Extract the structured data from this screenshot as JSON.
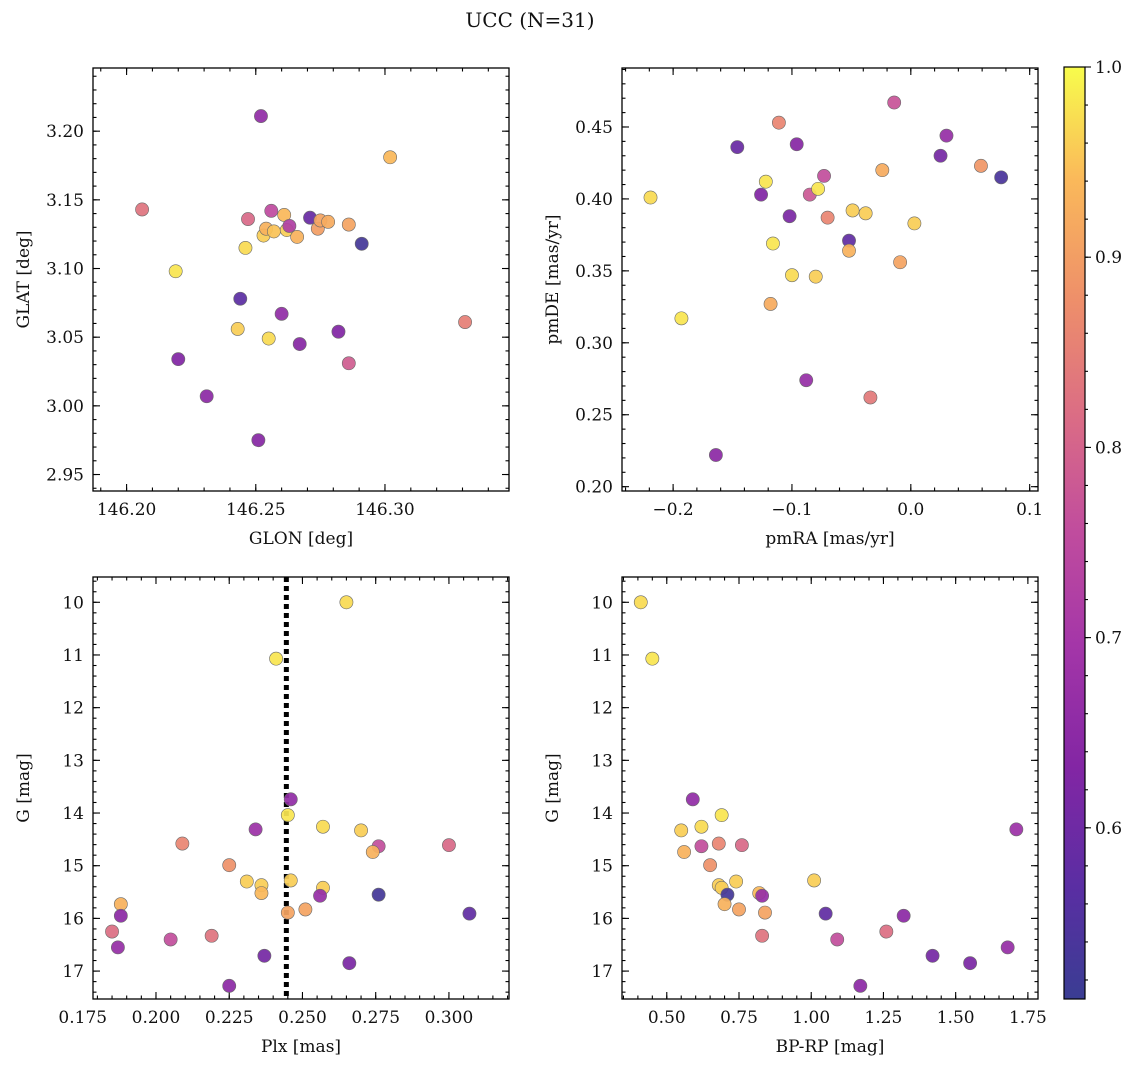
{
  "figure": {
    "title": "UCC (N=31)"
  },
  "colorbar": {
    "colormap": "plasma",
    "range": [
      0.51,
      1.0
    ],
    "ticks": [
      {
        "value": 0.6,
        "label": "0.6"
      },
      {
        "value": 0.7,
        "label": "0.7"
      },
      {
        "value": 0.8,
        "label": "0.8"
      },
      {
        "value": 0.9,
        "label": "0.9"
      },
      {
        "value": 1.0,
        "label": "1.0"
      }
    ]
  },
  "chart_data": [
    {
      "id": "glon-glat",
      "type": "scatter",
      "xlabel": "GLON [deg]",
      "ylabel": "GLAT [deg]",
      "xlim": [
        146.187,
        146.348
      ],
      "ylim": [
        2.938,
        3.246
      ],
      "xticks": [
        {
          "value": 146.2,
          "label": "146.20"
        },
        {
          "value": 146.25,
          "label": "146.25"
        },
        {
          "value": 146.3,
          "label": "146.30"
        }
      ],
      "yticks": [
        {
          "value": 2.95,
          "label": "2.95"
        },
        {
          "value": 3.0,
          "label": "3.00"
        },
        {
          "value": 3.05,
          "label": "3.05"
        },
        {
          "value": 3.1,
          "label": "3.10"
        },
        {
          "value": 3.15,
          "label": "3.15"
        },
        {
          "value": 3.2,
          "label": "3.20"
        }
      ],
      "points": [
        {
          "x": 146.206,
          "y": 3.143,
          "c": 0.83
        },
        {
          "x": 146.219,
          "y": 3.098,
          "c": 0.98
        },
        {
          "x": 146.22,
          "y": 3.034,
          "c": 0.63
        },
        {
          "x": 146.231,
          "y": 3.007,
          "c": 0.65
        },
        {
          "x": 146.243,
          "y": 3.056,
          "c": 0.96
        },
        {
          "x": 146.244,
          "y": 3.078,
          "c": 0.57
        },
        {
          "x": 146.246,
          "y": 3.115,
          "c": 0.97
        },
        {
          "x": 146.247,
          "y": 3.136,
          "c": 0.81
        },
        {
          "x": 146.251,
          "y": 2.975,
          "c": 0.64
        },
        {
          "x": 146.252,
          "y": 3.211,
          "c": 0.66
        },
        {
          "x": 146.253,
          "y": 3.124,
          "c": 0.96
        },
        {
          "x": 146.254,
          "y": 3.129,
          "c": 0.93
        },
        {
          "x": 146.255,
          "y": 3.049,
          "c": 0.97
        },
        {
          "x": 146.256,
          "y": 3.142,
          "c": 0.75
        },
        {
          "x": 146.257,
          "y": 3.127,
          "c": 0.95
        },
        {
          "x": 146.26,
          "y": 3.067,
          "c": 0.66
        },
        {
          "x": 146.261,
          "y": 3.139,
          "c": 0.94
        },
        {
          "x": 146.262,
          "y": 3.128,
          "c": 0.96
        },
        {
          "x": 146.263,
          "y": 3.131,
          "c": 0.72
        },
        {
          "x": 146.266,
          "y": 3.123,
          "c": 0.93
        },
        {
          "x": 146.267,
          "y": 3.045,
          "c": 0.64
        },
        {
          "x": 146.271,
          "y": 3.137,
          "c": 0.59
        },
        {
          "x": 146.274,
          "y": 3.129,
          "c": 0.9
        },
        {
          "x": 146.275,
          "y": 3.135,
          "c": 0.91
        },
        {
          "x": 146.278,
          "y": 3.134,
          "c": 0.92
        },
        {
          "x": 146.282,
          "y": 3.054,
          "c": 0.63
        },
        {
          "x": 146.286,
          "y": 3.031,
          "c": 0.79
        },
        {
          "x": 146.286,
          "y": 3.132,
          "c": 0.91
        },
        {
          "x": 146.291,
          "y": 3.118,
          "c": 0.53
        },
        {
          "x": 146.302,
          "y": 3.181,
          "c": 0.94
        },
        {
          "x": 146.331,
          "y": 3.061,
          "c": 0.85
        }
      ]
    },
    {
      "id": "pm",
      "type": "scatter",
      "xlabel": "pmRA [mas/yr]",
      "ylabel": "pmDE [mas/yr]",
      "xlim": [
        -0.243,
        0.107
      ],
      "ylim": [
        0.197,
        0.491
      ],
      "xticks": [
        {
          "value": -0.2,
          "label": "−0.2"
        },
        {
          "value": -0.1,
          "label": "−0.1"
        },
        {
          "value": 0.0,
          "label": "0.0"
        },
        {
          "value": 0.1,
          "label": "0.1"
        }
      ],
      "yticks": [
        {
          "value": 0.2,
          "label": "0.20"
        },
        {
          "value": 0.25,
          "label": "0.25"
        },
        {
          "value": 0.3,
          "label": "0.30"
        },
        {
          "value": 0.35,
          "label": "0.35"
        },
        {
          "value": 0.4,
          "label": "0.40"
        },
        {
          "value": 0.45,
          "label": "0.45"
        }
      ],
      "points": [
        {
          "x": -0.219,
          "y": 0.401,
          "c": 0.97
        },
        {
          "x": -0.193,
          "y": 0.317,
          "c": 0.98
        },
        {
          "x": -0.164,
          "y": 0.222,
          "c": 0.65
        },
        {
          "x": -0.146,
          "y": 0.436,
          "c": 0.59
        },
        {
          "x": -0.126,
          "y": 0.403,
          "c": 0.63
        },
        {
          "x": -0.122,
          "y": 0.412,
          "c": 0.98
        },
        {
          "x": -0.118,
          "y": 0.327,
          "c": 0.92
        },
        {
          "x": -0.116,
          "y": 0.369,
          "c": 0.98
        },
        {
          "x": -0.111,
          "y": 0.453,
          "c": 0.86
        },
        {
          "x": -0.102,
          "y": 0.388,
          "c": 0.62
        },
        {
          "x": -0.1,
          "y": 0.347,
          "c": 0.97
        },
        {
          "x": -0.096,
          "y": 0.438,
          "c": 0.64
        },
        {
          "x": -0.088,
          "y": 0.274,
          "c": 0.67
        },
        {
          "x": -0.085,
          "y": 0.403,
          "c": 0.78
        },
        {
          "x": -0.08,
          "y": 0.346,
          "c": 0.96
        },
        {
          "x": -0.078,
          "y": 0.407,
          "c": 0.98
        },
        {
          "x": -0.073,
          "y": 0.416,
          "c": 0.76
        },
        {
          "x": -0.07,
          "y": 0.387,
          "c": 0.86
        },
        {
          "x": -0.052,
          "y": 0.371,
          "c": 0.58
        },
        {
          "x": -0.052,
          "y": 0.364,
          "c": 0.93
        },
        {
          "x": -0.049,
          "y": 0.392,
          "c": 0.96
        },
        {
          "x": -0.038,
          "y": 0.39,
          "c": 0.96
        },
        {
          "x": -0.034,
          "y": 0.262,
          "c": 0.84
        },
        {
          "x": -0.024,
          "y": 0.42,
          "c": 0.92
        },
        {
          "x": -0.014,
          "y": 0.467,
          "c": 0.77
        },
        {
          "x": -0.009,
          "y": 0.356,
          "c": 0.91
        },
        {
          "x": 0.003,
          "y": 0.383,
          "c": 0.96
        },
        {
          "x": 0.025,
          "y": 0.43,
          "c": 0.61
        },
        {
          "x": 0.03,
          "y": 0.444,
          "c": 0.67
        },
        {
          "x": 0.059,
          "y": 0.423,
          "c": 0.89
        },
        {
          "x": 0.076,
          "y": 0.415,
          "c": 0.54
        }
      ]
    },
    {
      "id": "plx-g",
      "type": "scatter",
      "xlabel": "Plx [mas]",
      "ylabel": "G [mag]",
      "xlim": [
        0.1785,
        0.3205
      ],
      "ylim": [
        17.53,
        9.52
      ],
      "vline": {
        "x": 0.2445,
        "style": "dotted"
      },
      "xticks": [
        {
          "value": 0.175,
          "label": "0.175"
        },
        {
          "value": 0.2,
          "label": "0.200"
        },
        {
          "value": 0.225,
          "label": "0.225"
        },
        {
          "value": 0.25,
          "label": "0.250"
        },
        {
          "value": 0.275,
          "label": "0.275"
        },
        {
          "value": 0.3,
          "label": "0.300"
        }
      ],
      "yticks": [
        {
          "value": 10,
          "label": "10"
        },
        {
          "value": 11,
          "label": "11"
        },
        {
          "value": 12,
          "label": "12"
        },
        {
          "value": 13,
          "label": "13"
        },
        {
          "value": 14,
          "label": "14"
        },
        {
          "value": 15,
          "label": "15"
        },
        {
          "value": 16,
          "label": "16"
        },
        {
          "value": 17,
          "label": "17"
        }
      ],
      "points": [
        {
          "x": 0.265,
          "y": 10.0,
          "c": 0.97
        },
        {
          "x": 0.241,
          "y": 11.07,
          "c": 0.98
        },
        {
          "x": 0.246,
          "y": 13.74,
          "c": 0.66
        },
        {
          "x": 0.245,
          "y": 14.04,
          "c": 0.98
        },
        {
          "x": 0.257,
          "y": 14.26,
          "c": 0.97
        },
        {
          "x": 0.234,
          "y": 14.31,
          "c": 0.68
        },
        {
          "x": 0.27,
          "y": 14.33,
          "c": 0.96
        },
        {
          "x": 0.209,
          "y": 14.58,
          "c": 0.86
        },
        {
          "x": 0.3,
          "y": 14.61,
          "c": 0.81
        },
        {
          "x": 0.276,
          "y": 14.63,
          "c": 0.76
        },
        {
          "x": 0.274,
          "y": 14.74,
          "c": 0.93
        },
        {
          "x": 0.225,
          "y": 14.99,
          "c": 0.88
        },
        {
          "x": 0.246,
          "y": 15.28,
          "c": 0.96
        },
        {
          "x": 0.231,
          "y": 15.3,
          "c": 0.96
        },
        {
          "x": 0.236,
          "y": 15.37,
          "c": 0.96
        },
        {
          "x": 0.257,
          "y": 15.42,
          "c": 0.96
        },
        {
          "x": 0.236,
          "y": 15.52,
          "c": 0.94
        },
        {
          "x": 0.256,
          "y": 15.57,
          "c": 0.67
        },
        {
          "x": 0.276,
          "y": 15.55,
          "c": 0.53
        },
        {
          "x": 0.188,
          "y": 15.73,
          "c": 0.93
        },
        {
          "x": 0.251,
          "y": 15.83,
          "c": 0.91
        },
        {
          "x": 0.245,
          "y": 15.89,
          "c": 0.91
        },
        {
          "x": 0.307,
          "y": 15.91,
          "c": 0.58
        },
        {
          "x": 0.188,
          "y": 15.95,
          "c": 0.65
        },
        {
          "x": 0.185,
          "y": 16.25,
          "c": 0.82
        },
        {
          "x": 0.219,
          "y": 16.33,
          "c": 0.83
        },
        {
          "x": 0.205,
          "y": 16.4,
          "c": 0.76
        },
        {
          "x": 0.187,
          "y": 16.55,
          "c": 0.67
        },
        {
          "x": 0.237,
          "y": 16.71,
          "c": 0.61
        },
        {
          "x": 0.266,
          "y": 16.85,
          "c": 0.62
        },
        {
          "x": 0.225,
          "y": 17.28,
          "c": 0.65
        }
      ]
    },
    {
      "id": "cmd",
      "type": "scatter",
      "xlabel": "BP-RP [mag]",
      "ylabel": "G [mag]",
      "xlim": [
        0.345,
        1.785
      ],
      "ylim": [
        17.53,
        9.52
      ],
      "xticks": [
        {
          "value": 0.5,
          "label": "0.50"
        },
        {
          "value": 0.75,
          "label": "0.75"
        },
        {
          "value": 1.0,
          "label": "1.00"
        },
        {
          "value": 1.25,
          "label": "1.25"
        },
        {
          "value": 1.5,
          "label": "1.50"
        },
        {
          "value": 1.75,
          "label": "1.75"
        }
      ],
      "yticks": [
        {
          "value": 10,
          "label": "10"
        },
        {
          "value": 11,
          "label": "11"
        },
        {
          "value": 12,
          "label": "12"
        },
        {
          "value": 13,
          "label": "13"
        },
        {
          "value": 14,
          "label": "14"
        },
        {
          "value": 15,
          "label": "15"
        },
        {
          "value": 16,
          "label": "16"
        },
        {
          "value": 17,
          "label": "17"
        }
      ],
      "points": [
        {
          "x": 0.41,
          "y": 10.0,
          "c": 0.97
        },
        {
          "x": 0.45,
          "y": 11.07,
          "c": 0.98
        },
        {
          "x": 0.59,
          "y": 13.74,
          "c": 0.66
        },
        {
          "x": 0.69,
          "y": 14.04,
          "c": 0.98
        },
        {
          "x": 0.62,
          "y": 14.26,
          "c": 0.97
        },
        {
          "x": 1.71,
          "y": 14.31,
          "c": 0.68
        },
        {
          "x": 0.55,
          "y": 14.33,
          "c": 0.96
        },
        {
          "x": 0.68,
          "y": 14.58,
          "c": 0.86
        },
        {
          "x": 0.76,
          "y": 14.61,
          "c": 0.81
        },
        {
          "x": 0.62,
          "y": 14.63,
          "c": 0.76
        },
        {
          "x": 0.56,
          "y": 14.74,
          "c": 0.93
        },
        {
          "x": 0.65,
          "y": 14.99,
          "c": 0.88
        },
        {
          "x": 1.01,
          "y": 15.28,
          "c": 0.96
        },
        {
          "x": 0.74,
          "y": 15.3,
          "c": 0.96
        },
        {
          "x": 0.68,
          "y": 15.37,
          "c": 0.96
        },
        {
          "x": 0.69,
          "y": 15.42,
          "c": 0.96
        },
        {
          "x": 0.82,
          "y": 15.52,
          "c": 0.94
        },
        {
          "x": 0.83,
          "y": 15.57,
          "c": 0.67
        },
        {
          "x": 0.71,
          "y": 15.55,
          "c": 0.53
        },
        {
          "x": 0.7,
          "y": 15.73,
          "c": 0.93
        },
        {
          "x": 0.75,
          "y": 15.83,
          "c": 0.91
        },
        {
          "x": 0.84,
          "y": 15.89,
          "c": 0.91
        },
        {
          "x": 1.05,
          "y": 15.91,
          "c": 0.58
        },
        {
          "x": 1.32,
          "y": 15.95,
          "c": 0.65
        },
        {
          "x": 1.26,
          "y": 16.25,
          "c": 0.82
        },
        {
          "x": 0.83,
          "y": 16.33,
          "c": 0.83
        },
        {
          "x": 1.09,
          "y": 16.4,
          "c": 0.76
        },
        {
          "x": 1.68,
          "y": 16.55,
          "c": 0.67
        },
        {
          "x": 1.42,
          "y": 16.71,
          "c": 0.61
        },
        {
          "x": 1.55,
          "y": 16.85,
          "c": 0.62
        },
        {
          "x": 1.17,
          "y": 17.28,
          "c": 0.65
        }
      ]
    }
  ]
}
